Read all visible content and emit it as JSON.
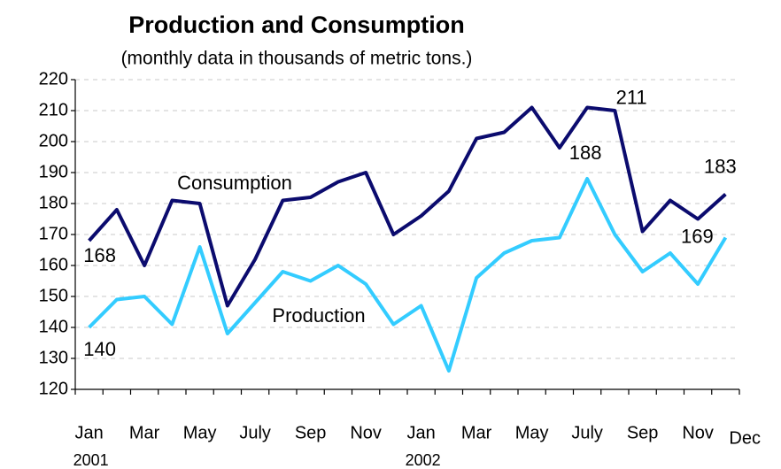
{
  "chart_data": {
    "type": "line",
    "title": "Production and Consumption",
    "subtitle": "(monthly data in thousands of metric tons.)",
    "categories": [
      "Jan",
      null,
      "Mar",
      null,
      "May",
      null,
      "July",
      null,
      "Sep",
      null,
      "Nov",
      null,
      "Jan",
      null,
      "Mar",
      null,
      "May",
      null,
      "July",
      null,
      "Sep",
      null,
      "Nov",
      "Dec"
    ],
    "year_labels": [
      "2001",
      "2002"
    ],
    "series": [
      {
        "name": "Consumption",
        "color": "#0b0b6e",
        "values": [
          168,
          178,
          160,
          181,
          180,
          147,
          162,
          181,
          182,
          187,
          190,
          170,
          176,
          184,
          201,
          203,
          211,
          198,
          211,
          210,
          171,
          181,
          175,
          183
        ]
      },
      {
        "name": "Production",
        "color": "#33ccff",
        "values": [
          140,
          149,
          150,
          141,
          166,
          138,
          148,
          158,
          155,
          160,
          154,
          141,
          147,
          126,
          156,
          164,
          168,
          169,
          188,
          170,
          158,
          164,
          154,
          169
        ]
      }
    ],
    "ylim": [
      120,
      220
    ],
    "yticks": [
      120,
      130,
      140,
      150,
      160,
      170,
      180,
      190,
      200,
      210,
      220
    ],
    "grid": true
  }
}
